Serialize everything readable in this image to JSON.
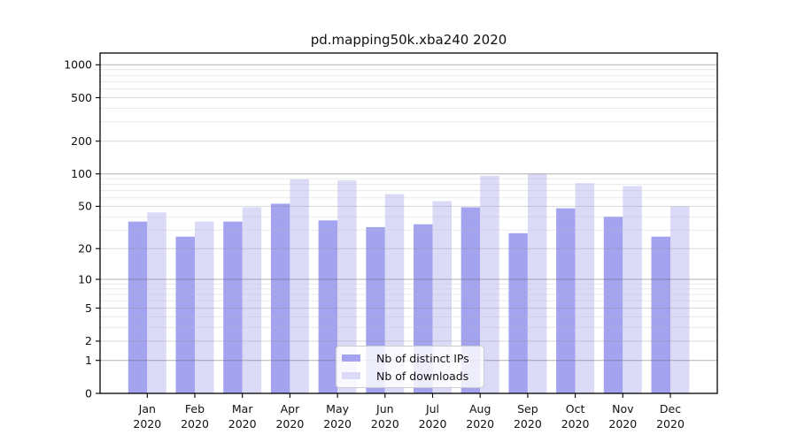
{
  "chart_data": {
    "type": "bar",
    "title": "pd.mapping50k.xba240 2020",
    "categories": [
      "Jan",
      "Feb",
      "Mar",
      "Apr",
      "May",
      "Jun",
      "Jul",
      "Aug",
      "Sep",
      "Oct",
      "Nov",
      "Dec"
    ],
    "year_label": "2020",
    "series": [
      {
        "name": "Nb of distinct IPs",
        "color": "#a3a3f0",
        "values": [
          36,
          26,
          36,
          53,
          37,
          32,
          34,
          49,
          28,
          48,
          40,
          26
        ]
      },
      {
        "name": "Nb of downloads",
        "color": "#dbdbf8",
        "values": [
          44,
          36,
          49,
          89,
          87,
          65,
          56,
          96,
          100,
          82,
          77,
          50
        ]
      }
    ],
    "y_ticks": [
      0,
      1,
      2,
      5,
      10,
      20,
      50,
      100,
      200,
      500,
      1000
    ],
    "y_minor_gridlines": [
      3,
      4,
      6,
      7,
      8,
      9,
      30,
      40,
      60,
      70,
      80,
      90,
      300,
      400,
      600,
      700,
      800,
      900
    ],
    "y_scale": "log10(value+1)",
    "ylim": [
      0,
      1280
    ],
    "xlabel": "",
    "ylabel": "",
    "grid": "horizontal",
    "legend_position": "lower center"
  }
}
